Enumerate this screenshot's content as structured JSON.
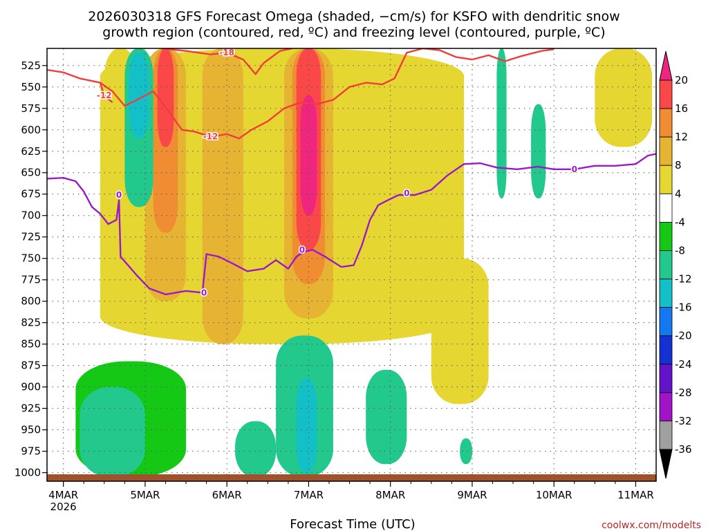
{
  "chart_data": {
    "type": "heatmap",
    "title": "2026030318 GFS Forecast Omega (shaded, −cm/s) for KSFO with dendritic snow growth region (contoured, red, ºC) and freezing level (contoured, purple, ºC)",
    "title_lines": [
      "2026030318 GFS Forecast Omega (shaded, −cm/s) for KSFO with dendritic snow",
      "growth region (contoured, red, ºC) and freezing level (contoured, purple, ºC)"
    ],
    "xlabel": "Forecast Time (UTC)",
    "ylabel": "",
    "credit": "coolwx.com/modelts",
    "x_range_days": [
      3.8,
      11.25
    ],
    "y_range_hpa": [
      505,
      1010
    ],
    "x_ticks": [
      {
        "label": "4MAR",
        "day": 4,
        "sub": "2026"
      },
      {
        "label": "5MAR",
        "day": 5
      },
      {
        "label": "6MAR",
        "day": 6
      },
      {
        "label": "7MAR",
        "day": 7
      },
      {
        "label": "8MAR",
        "day": 8
      },
      {
        "label": "9MAR",
        "day": 9
      },
      {
        "label": "10MAR",
        "day": 10
      },
      {
        "label": "11MAR",
        "day": 11
      }
    ],
    "y_ticks": [
      "525",
      "550",
      "575",
      "600",
      "625",
      "650",
      "675",
      "700",
      "725",
      "750",
      "775",
      "800",
      "825",
      "850",
      "875",
      "900",
      "925",
      "950",
      "975",
      "1000"
    ],
    "colorbar": {
      "labels": [
        "20",
        "16",
        "12",
        "8",
        "4",
        "-4",
        "-8",
        "-12",
        "-16",
        "-20",
        "-24",
        "-28",
        "-32",
        "-36"
      ],
      "colors": [
        "#f0257f",
        "#fa4848",
        "#f08c32",
        "#e6b432",
        "#e6d632",
        "#ffffff",
        "#16c816",
        "#22c88c",
        "#14c0c8",
        "#1478f0",
        "#1432d2",
        "#6414c8",
        "#a014c8",
        "#a0a0a0",
        "#000000"
      ]
    },
    "omega_regions": [
      {
        "name": "upper-broad-4",
        "omega": 4,
        "days": [
          4.45,
          8.9
        ],
        "p": [
          505,
          850
        ]
      },
      {
        "name": "upper-west-4",
        "omega": 4,
        "days": [
          4.5,
          4.9
        ],
        "p": [
          505,
          780
        ]
      },
      {
        "name": "band-9mar-4",
        "omega": 4,
        "days": [
          8.5,
          9.2
        ],
        "p": [
          750,
          920
        ]
      },
      {
        "name": "ne-spots-4",
        "omega": 4,
        "days": [
          10.5,
          11.2
        ],
        "p": [
          505,
          620
        ]
      },
      {
        "name": "low-7mar-4",
        "omega": 4,
        "days": [
          6.7,
          7.2
        ],
        "p": [
          700,
          900
        ]
      },
      {
        "name": "core-5mar-8",
        "omega": 8,
        "days": [
          5.0,
          5.5
        ],
        "p": [
          505,
          800
        ]
      },
      {
        "name": "core-6mar-8",
        "omega": 8,
        "days": [
          5.7,
          6.2
        ],
        "p": [
          505,
          850
        ]
      },
      {
        "name": "core-7mar-8",
        "omega": 8,
        "days": [
          6.7,
          7.3
        ],
        "p": [
          505,
          820
        ]
      },
      {
        "name": "core-7mar-12",
        "omega": 12,
        "days": [
          6.8,
          7.2
        ],
        "p": [
          505,
          780
        ]
      },
      {
        "name": "core-5mar-12",
        "omega": 12,
        "days": [
          5.1,
          5.4
        ],
        "p": [
          505,
          720
        ]
      },
      {
        "name": "core-7mar-16",
        "omega": 16,
        "days": [
          6.85,
          7.15
        ],
        "p": [
          505,
          740
        ]
      },
      {
        "name": "core-7mar-20",
        "omega": 20,
        "days": [
          6.9,
          7.1
        ],
        "p": [
          560,
          700
        ]
      },
      {
        "name": "core-5mar-16",
        "omega": 16,
        "days": [
          5.15,
          5.35
        ],
        "p": [
          505,
          620
        ]
      },
      {
        "name": "sink-5mar-8",
        "omega": -8,
        "days": [
          4.75,
          5.1
        ],
        "p": [
          505,
          690
        ]
      },
      {
        "name": "sink-5mar-12",
        "omega": -12,
        "days": [
          4.8,
          5.05
        ],
        "p": [
          510,
          610
        ]
      },
      {
        "name": "sink-9mar-8",
        "omega": -8,
        "days": [
          9.3,
          9.42
        ],
        "p": [
          505,
          680
        ]
      },
      {
        "name": "sink-10mar-8",
        "omega": -8,
        "days": [
          9.72,
          9.9
        ],
        "p": [
          570,
          680
        ]
      },
      {
        "name": "low-5mar-4",
        "omega": -4,
        "days": [
          4.15,
          5.5
        ],
        "p": [
          870,
          1005
        ]
      },
      {
        "name": "low-5mar-8",
        "omega": -8,
        "days": [
          4.2,
          5.0
        ],
        "p": [
          900,
          1005
        ]
      },
      {
        "name": "low-6mar-8",
        "omega": -8,
        "days": [
          6.1,
          6.6
        ],
        "p": [
          940,
          1005
        ]
      },
      {
        "name": "low-7mar-8",
        "omega": -8,
        "days": [
          6.6,
          7.3
        ],
        "p": [
          840,
          1005
        ]
      },
      {
        "name": "low-7mar-12",
        "omega": -12,
        "days": [
          6.85,
          7.1
        ],
        "p": [
          890,
          1000
        ]
      },
      {
        "name": "low-8mar-8",
        "omega": -8,
        "days": [
          7.7,
          8.2
        ],
        "p": [
          880,
          990
        ]
      },
      {
        "name": "low-9mar-8",
        "omega": -8,
        "days": [
          8.85,
          9.0
        ],
        "p": [
          960,
          990
        ]
      }
    ],
    "dendritic_lines": [
      {
        "label": "-12",
        "points": [
          [
            3.8,
            530
          ],
          [
            4.0,
            533
          ],
          [
            4.2,
            540
          ],
          [
            4.45,
            545
          ],
          [
            4.6,
            555
          ],
          [
            4.75,
            572
          ],
          [
            4.9,
            565
          ],
          [
            5.1,
            555
          ],
          [
            5.3,
            580
          ],
          [
            5.45,
            600
          ],
          [
            5.6,
            602
          ],
          [
            5.8,
            608
          ],
          [
            6.0,
            605
          ],
          [
            6.15,
            610
          ],
          [
            6.3,
            600
          ],
          [
            6.5,
            590
          ],
          [
            6.7,
            575
          ],
          [
            6.9,
            568
          ],
          [
            7.1,
            570
          ],
          [
            7.3,
            565
          ],
          [
            7.5,
            550
          ],
          [
            7.7,
            545
          ],
          [
            7.9,
            547
          ],
          [
            8.05,
            540
          ],
          [
            8.2,
            510
          ],
          [
            8.4,
            505
          ],
          [
            8.6,
            507
          ],
          [
            8.8,
            515
          ],
          [
            9.0,
            518
          ],
          [
            9.2,
            513
          ],
          [
            9.4,
            520
          ],
          [
            9.6,
            514
          ],
          [
            9.85,
            508
          ],
          [
            10.0,
            506
          ]
        ]
      },
      {
        "label": "-18",
        "points": [
          [
            5.2,
            505
          ],
          [
            5.5,
            508
          ],
          [
            5.8,
            512
          ],
          [
            6.0,
            510
          ],
          [
            6.2,
            518
          ],
          [
            6.35,
            535
          ],
          [
            6.45,
            522
          ],
          [
            6.65,
            508
          ],
          [
            6.8,
            505
          ]
        ]
      },
      {
        "label": "-12",
        "points": [
          [
            4.45,
            545
          ],
          [
            4.5,
            560
          ],
          [
            4.6,
            568
          ]
        ]
      }
    ],
    "freezing_line": {
      "label": "0",
      "points": [
        [
          3.8,
          657
        ],
        [
          4.0,
          656
        ],
        [
          4.15,
          660
        ],
        [
          4.25,
          672
        ],
        [
          4.35,
          690
        ],
        [
          4.45,
          698
        ],
        [
          4.55,
          710
        ],
        [
          4.65,
          705
        ],
        [
          4.68,
          682
        ],
        [
          4.7,
          748
        ],
        [
          4.9,
          770
        ],
        [
          5.05,
          785
        ],
        [
          5.25,
          792
        ],
        [
          5.5,
          788
        ],
        [
          5.7,
          790
        ],
        [
          5.75,
          745
        ],
        [
          5.9,
          748
        ],
        [
          6.05,
          755
        ],
        [
          6.25,
          765
        ],
        [
          6.45,
          762
        ],
        [
          6.6,
          752
        ],
        [
          6.75,
          762
        ],
        [
          6.85,
          748
        ],
        [
          6.95,
          742
        ],
        [
          7.05,
          740
        ],
        [
          7.2,
          748
        ],
        [
          7.4,
          760
        ],
        [
          7.55,
          758
        ],
        [
          7.65,
          735
        ],
        [
          7.75,
          705
        ],
        [
          7.85,
          688
        ],
        [
          7.95,
          683
        ],
        [
          8.1,
          676
        ],
        [
          8.3,
          676
        ],
        [
          8.5,
          670
        ],
        [
          8.7,
          653
        ],
        [
          8.9,
          640
        ],
        [
          9.1,
          639
        ],
        [
          9.3,
          644
        ],
        [
          9.55,
          646
        ],
        [
          9.8,
          643
        ],
        [
          10.0,
          646
        ],
        [
          10.25,
          646
        ],
        [
          10.5,
          642
        ],
        [
          10.75,
          642
        ],
        [
          11.0,
          640
        ],
        [
          11.15,
          630
        ],
        [
          11.25,
          628
        ]
      ]
    }
  }
}
